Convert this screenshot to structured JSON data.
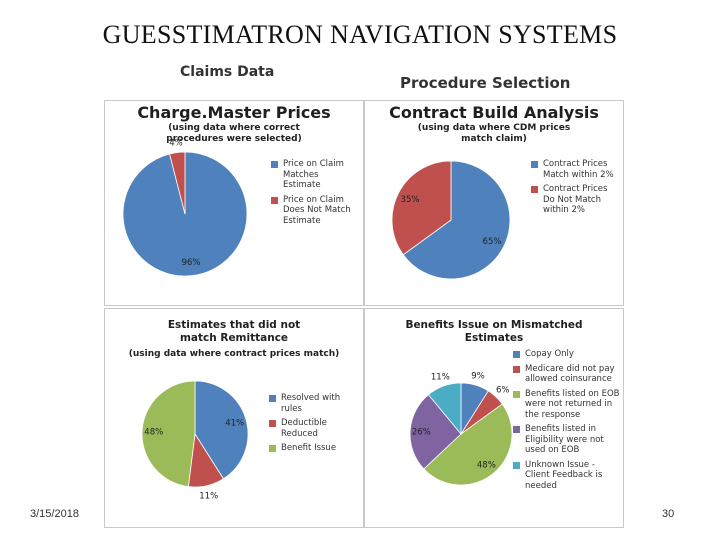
{
  "slide": {
    "title": "GUESSTIMATRON NAVIGATION SYSTEMS",
    "subtitle_left": "Claims Data",
    "subtitle_right": "Procedure Selection",
    "date": "3/15/2018",
    "page_number": "30"
  },
  "chart_data": [
    {
      "type": "pie",
      "title": "Charge.Master Prices",
      "note": "(using data where correct procedures were selected)",
      "categories": [
        "Price on Claim Matches Estimate",
        "Price on Claim Does Not Match Estimate"
      ],
      "values": [
        96,
        4
      ],
      "labels": [
        "96%",
        "4%"
      ],
      "colors": [
        "#4f81bd",
        "#c0504d"
      ]
    },
    {
      "type": "pie",
      "title": "Contract Build Analysis",
      "note": "(using data where CDM prices match claim)",
      "categories": [
        "Contract Prices Match within 2%",
        "Contract Prices Do Not Match within 2%"
      ],
      "values": [
        65,
        35
      ],
      "labels": [
        "65%",
        "35%"
      ],
      "colors": [
        "#4f81bd",
        "#c0504d"
      ]
    },
    {
      "type": "pie",
      "title": "Estimates that did not match Remittance",
      "note": "(using data where contract prices match)",
      "categories": [
        "Resolved with rules",
        "Deductible Reduced",
        "Benefit Issue"
      ],
      "values": [
        41,
        11,
        48
      ],
      "labels": [
        "41%",
        "11%",
        "48%"
      ],
      "colors": [
        "#4f81bd",
        "#c0504d",
        "#9bbb59"
      ]
    },
    {
      "type": "pie",
      "title": "Benefits Issue on Mismatched Estimates",
      "note": "",
      "categories": [
        "Copay Only",
        "Medicare did not pay allowed coinsurance",
        "Benefits listed on EOB were not returned in the response",
        "Benefits listed in Eligibility were not used on EOB",
        "Unknown Issue - Client Feedback is needed"
      ],
      "values": [
        9,
        6,
        48,
        26,
        11
      ],
      "labels": [
        "9%",
        "6%",
        "48%",
        "26%",
        "11%"
      ],
      "colors": [
        "#4f81bd",
        "#c0504d",
        "#9bbb59",
        "#8064a2",
        "#4bacc6"
      ]
    }
  ]
}
